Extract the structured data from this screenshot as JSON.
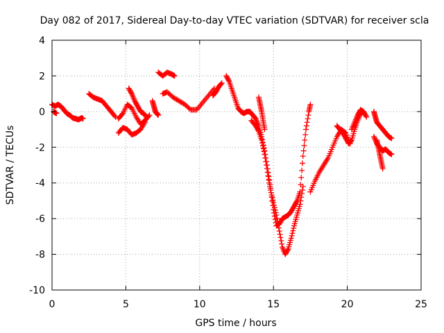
{
  "chart_data": {
    "type": "scatter",
    "title": "Day 082 of 2017, Sidereal Day-to-day VTEC variation (SDTVAR) for receiver scla",
    "xlabel": "GPS time / hours",
    "ylabel": "SDTVAR / TECUs",
    "xlim": [
      0,
      25
    ],
    "ylim": [
      -10,
      4
    ],
    "x_ticks": [
      0,
      5,
      10,
      15,
      20,
      25
    ],
    "y_ticks": [
      -10,
      -8,
      -6,
      -4,
      -2,
      0,
      2,
      4
    ],
    "x_tick_labels": [
      "0",
      "5",
      "10",
      "15",
      "20",
      "25"
    ],
    "y_tick_labels": [
      "-10",
      "-8",
      "-6",
      "-4",
      "-2",
      "0",
      "2",
      "4"
    ],
    "grid": true,
    "marker": "plus",
    "color": "#ff0000",
    "series": [
      {
        "name": "segment-1",
        "x": [
          0.0,
          0.2,
          0.4,
          0.6,
          0.8,
          1.0,
          1.2,
          1.4,
          1.6,
          1.8,
          2.0,
          2.1
        ],
        "y": [
          0.4,
          0.3,
          0.4,
          0.3,
          0.1,
          -0.1,
          -0.2,
          -0.35,
          -0.4,
          -0.45,
          -0.35,
          -0.4
        ]
      },
      {
        "name": "segment-1b",
        "x": [
          0.1,
          0.2,
          0.3
        ],
        "y": [
          0.0,
          -0.05,
          -0.1
        ]
      },
      {
        "name": "segment-2",
        "x": [
          2.5,
          2.8,
          3.1,
          3.4,
          3.7,
          4.0,
          4.3
        ],
        "y": [
          1.0,
          0.8,
          0.7,
          0.6,
          0.3,
          0.0,
          -0.3
        ]
      },
      {
        "name": "segment-3",
        "x": [
          4.5,
          4.8,
          5.1,
          5.4,
          5.7,
          6.0,
          6.3,
          6.6
        ],
        "y": [
          -0.4,
          -0.1,
          0.4,
          0.2,
          -0.3,
          -0.7,
          -0.5,
          -0.2
        ]
      },
      {
        "name": "segment-4",
        "x": [
          4.5,
          4.8,
          5.1,
          5.4,
          5.7,
          6.0,
          6.3
        ],
        "y": [
          -1.2,
          -0.9,
          -1.0,
          -1.3,
          -1.2,
          -1.0,
          -0.6
        ]
      },
      {
        "name": "segment-5",
        "x": [
          5.2,
          5.4,
          5.6,
          5.8,
          6.0,
          6.2,
          6.4
        ],
        "y": [
          1.3,
          1.0,
          0.6,
          0.3,
          0.0,
          -0.1,
          -0.3
        ]
      },
      {
        "name": "segment-6",
        "x": [
          6.8,
          6.9,
          7.0,
          7.1,
          7.2
        ],
        "y": [
          0.6,
          0.3,
          0.0,
          -0.1,
          -0.2
        ]
      },
      {
        "name": "segment-7",
        "x": [
          7.2,
          7.5,
          7.8,
          8.1,
          8.3
        ],
        "y": [
          2.2,
          2.0,
          2.2,
          2.1,
          2.0
        ]
      },
      {
        "name": "segment-8",
        "x": [
          7.5,
          7.8,
          8.2,
          8.6,
          9.0,
          9.4,
          9.8,
          10.2,
          10.6,
          11.0
        ],
        "y": [
          1.0,
          1.1,
          0.8,
          0.6,
          0.4,
          0.1,
          0.1,
          0.5,
          0.9,
          1.3
        ]
      },
      {
        "name": "segment-9",
        "x": [
          10.9,
          11.1,
          11.3,
          11.5
        ],
        "y": [
          0.9,
          1.1,
          1.4,
          1.6
        ]
      },
      {
        "name": "segment-10",
        "x": [
          11.8,
          12.0,
          12.2,
          12.4,
          12.6,
          12.8,
          13.0,
          13.2,
          13.4,
          13.6,
          13.8,
          14.0,
          14.2,
          14.4,
          14.6,
          14.8,
          15.0,
          15.2,
          15.4,
          15.6,
          15.8,
          16.0,
          16.2,
          16.4,
          16.6,
          16.8,
          17.0,
          17.2,
          17.4,
          17.5
        ],
        "y": [
          2.0,
          1.7,
          1.2,
          0.7,
          0.2,
          0.0,
          -0.1,
          0.0,
          0.0,
          -0.2,
          -0.4,
          -0.8,
          -1.4,
          -2.2,
          -3.2,
          -4.3,
          -5.5,
          -6.4,
          -6.3,
          -6.0,
          -5.9,
          -5.8,
          -5.6,
          -5.3,
          -5.0,
          -4.5,
          -2.5,
          -1.0,
          0.0,
          0.4
        ]
      },
      {
        "name": "segment-11",
        "x": [
          13.5,
          13.8,
          14.0,
          14.2,
          14.4,
          14.6,
          14.8,
          15.0,
          15.2,
          15.4,
          15.6,
          15.8,
          16.0,
          16.2,
          16.4,
          16.6,
          16.8,
          17.0
        ],
        "y": [
          -0.5,
          -0.8,
          -1.1,
          -1.6,
          -2.4,
          -3.4,
          -4.4,
          -5.1,
          -5.8,
          -6.7,
          -7.6,
          -8.0,
          -7.7,
          -7.1,
          -6.4,
          -5.8,
          -5.2,
          -4.2
        ]
      },
      {
        "name": "segment-12",
        "x": [
          14.0,
          14.1,
          14.2,
          14.3,
          14.4
        ],
        "y": [
          0.8,
          0.4,
          0.0,
          -0.5,
          -1.0
        ]
      },
      {
        "name": "segment-13",
        "x": [
          17.5,
          17.8,
          18.1,
          18.4,
          18.7,
          19.0,
          19.3,
          19.6,
          19.9,
          20.2
        ],
        "y": [
          -4.5,
          -3.9,
          -3.4,
          -3.0,
          -2.6,
          -2.0,
          -1.4,
          -1.0,
          -1.2,
          -1.8
        ]
      },
      {
        "name": "segment-14",
        "x": [
          19.3,
          19.5,
          19.7,
          19.9,
          20.1,
          20.3,
          20.5,
          20.7,
          20.9,
          21.1
        ],
        "y": [
          -0.8,
          -1.0,
          -1.2,
          -1.5,
          -1.8,
          -1.6,
          -1.0,
          -0.5,
          -0.1,
          0.0
        ]
      },
      {
        "name": "segment-15",
        "x": [
          20.3,
          20.5,
          20.7,
          20.9,
          21.1,
          21.3
        ],
        "y": [
          -1.0,
          -0.6,
          -0.2,
          0.1,
          0.0,
          -0.3
        ]
      },
      {
        "name": "segment-16",
        "x": [
          21.8,
          21.9,
          22.0,
          22.2,
          22.4,
          22.6,
          22.8,
          23.0
        ],
        "y": [
          0.0,
          -0.3,
          -0.6,
          -0.8,
          -1.0,
          -1.2,
          -1.4,
          -1.5
        ]
      },
      {
        "name": "segment-17",
        "x": [
          21.8,
          22.0,
          22.2,
          22.4,
          22.6,
          22.8,
          23.0
        ],
        "y": [
          -1.4,
          -1.8,
          -2.0,
          -2.2,
          -2.1,
          -2.3,
          -2.4
        ]
      },
      {
        "name": "segment-18",
        "x": [
          22.0,
          22.1,
          22.2,
          22.3,
          22.4
        ],
        "y": [
          -1.6,
          -2.0,
          -2.4,
          -2.8,
          -3.2
        ]
      }
    ]
  }
}
